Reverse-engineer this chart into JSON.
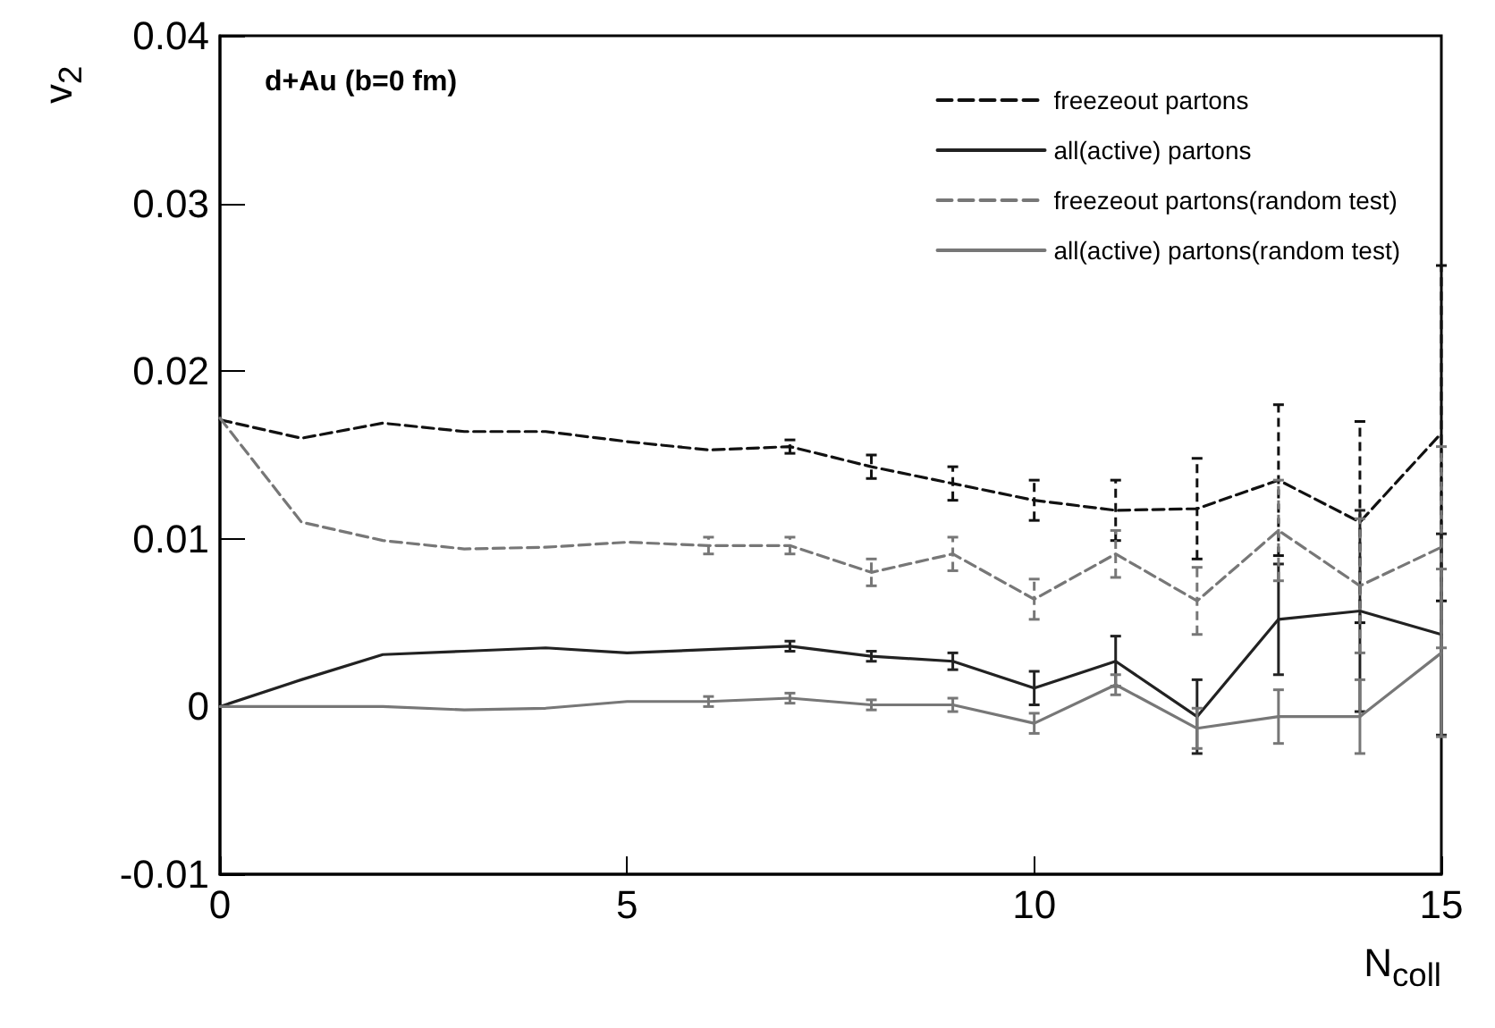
{
  "chart_data": {
    "type": "line",
    "xlabel": "N$_{coll}$",
    "ylabel": "v$_{2}$",
    "annotations": [
      "d+Au (b=0 fm)"
    ],
    "x": [
      0,
      1,
      2,
      3,
      4,
      5,
      6,
      7,
      8,
      9,
      10,
      11,
      12,
      13,
      14,
      15
    ],
    "xlim": [
      0,
      15
    ],
    "xticks": [
      0,
      5,
      10,
      15
    ],
    "ylim": [
      -0.01,
      0.04
    ],
    "yticks": [
      -0.01,
      0,
      0.01,
      0.02,
      0.03,
      0.04
    ],
    "legend": "top right",
    "grid": false,
    "series": [
      {
        "name": "freezeout partons",
        "color": "#111111",
        "line_style": "dashed",
        "values": [
          0.0171,
          0.016,
          0.0169,
          0.0164,
          0.0164,
          0.0158,
          0.0153,
          0.0155,
          0.0143,
          0.0133,
          0.0123,
          0.0117,
          0.0118,
          0.0135,
          0.011,
          0.0163
        ],
        "errors": [
          null,
          null,
          null,
          null,
          null,
          null,
          null,
          0.0004,
          0.0007,
          0.001,
          0.0012,
          0.0018,
          0.003,
          0.0045,
          0.006,
          0.01
        ]
      },
      {
        "name": "all(active) partons",
        "color": "#222222",
        "line_style": "solid",
        "values": [
          0,
          0.0016,
          0.0031,
          0.0033,
          0.0035,
          0.0032,
          0.0034,
          0.0036,
          0.003,
          0.0027,
          0.0011,
          0.0027,
          -0.0006,
          0.0052,
          0.0057,
          0.0043
        ],
        "errors": [
          null,
          null,
          null,
          null,
          null,
          null,
          null,
          0.0003,
          0.0003,
          0.0005,
          0.001,
          0.0015,
          0.0022,
          0.0033,
          0.006,
          0.006
        ]
      },
      {
        "name": "freezeout partons(random test)",
        "color": "#777777",
        "line_style": "dashed",
        "values": [
          0.0172,
          0.011,
          0.0099,
          0.0094,
          0.0095,
          0.0098,
          0.0096,
          0.0096,
          0.008,
          0.0091,
          0.0064,
          0.0091,
          0.0063,
          0.0105,
          0.0072,
          0.0095
        ],
        "errors": [
          null,
          null,
          null,
          null,
          null,
          null,
          0.0005,
          0.0005,
          0.0008,
          0.001,
          0.0012,
          0.0014,
          0.002,
          0.003,
          0.004,
          0.006
        ]
      },
      {
        "name": "all(active) partons(random test)",
        "color": "#777777",
        "line_style": "solid",
        "values": [
          0,
          0,
          0,
          -0.0002,
          -0.0001,
          0.0003,
          0.0003,
          0.0005,
          0.0001,
          0.0001,
          -0.001,
          0.0013,
          -0.0013,
          -0.0006,
          -0.0006,
          0.0032
        ],
        "errors": [
          null,
          null,
          null,
          null,
          null,
          null,
          0.0003,
          0.0003,
          0.0003,
          0.0004,
          0.0006,
          0.0006,
          0.0012,
          0.0016,
          0.0022,
          0.005
        ]
      }
    ]
  }
}
